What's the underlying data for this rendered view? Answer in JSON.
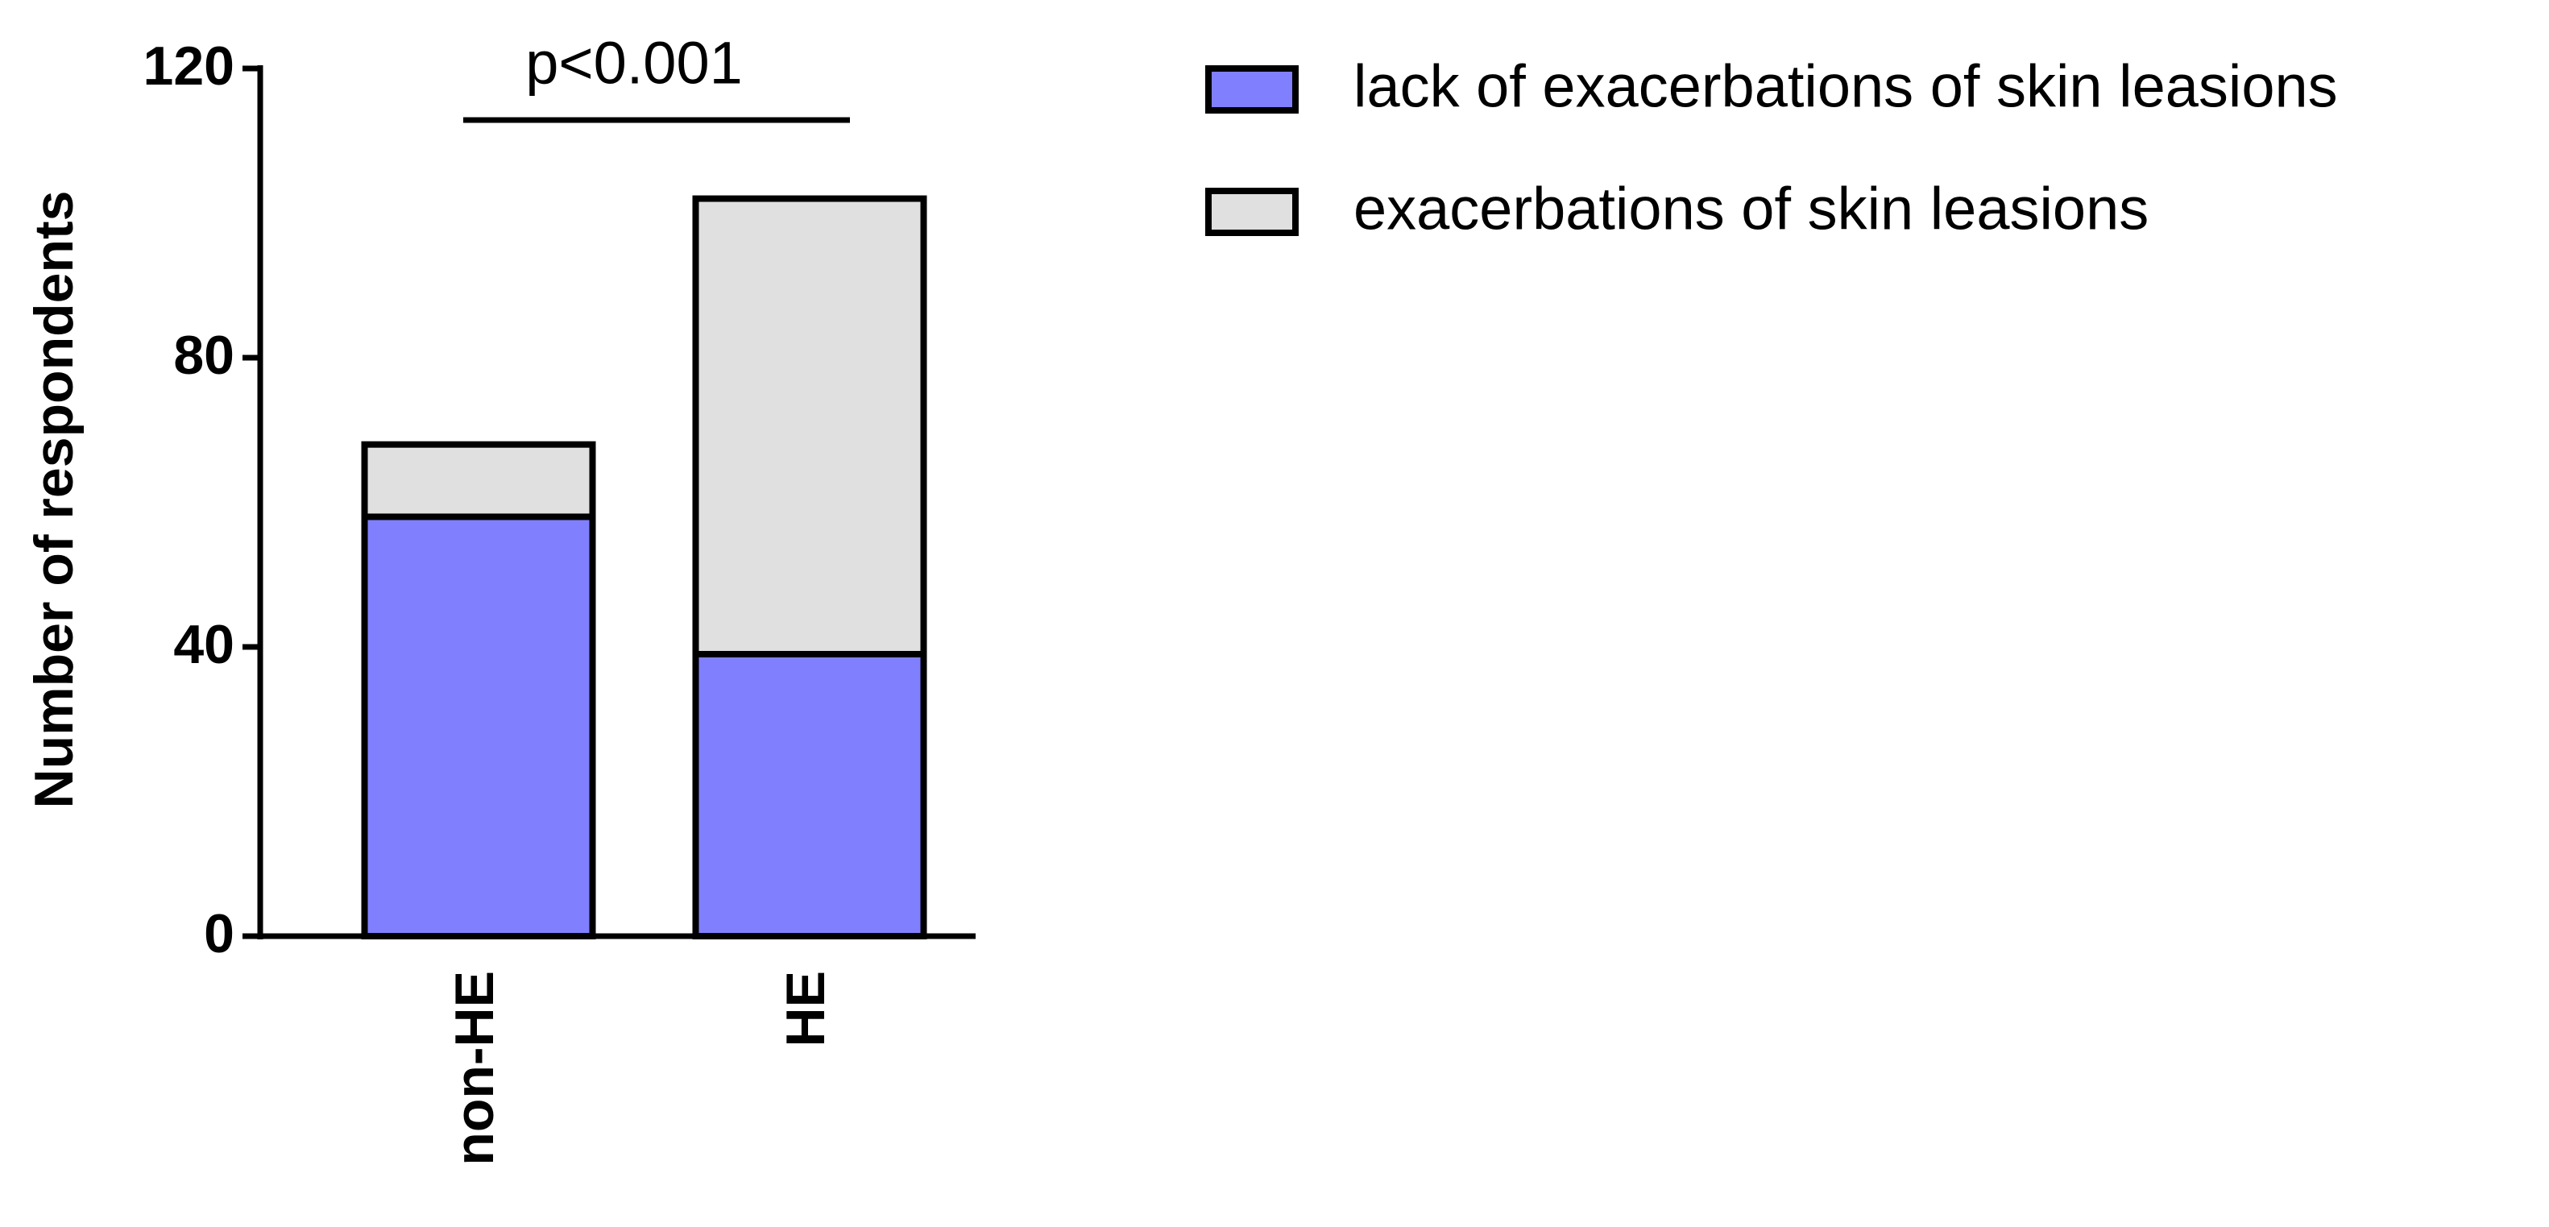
{
  "chart_data": {
    "type": "stacked_bar",
    "y_label": "Number of respondents",
    "annotation": "p<0.001",
    "categories": [
      "non-HE",
      "HE"
    ],
    "series": [
      {
        "name": "lack of exacerbations of skin leasions",
        "color": "#8080ff",
        "values": [
          58,
          39
        ]
      },
      {
        "name": "exacerbations of skin leasions",
        "color": "#e0e0e0",
        "values": [
          10,
          63
        ]
      }
    ],
    "ylim": [
      0,
      120
    ],
    "yticks": [
      0,
      40,
      80,
      120
    ]
  }
}
